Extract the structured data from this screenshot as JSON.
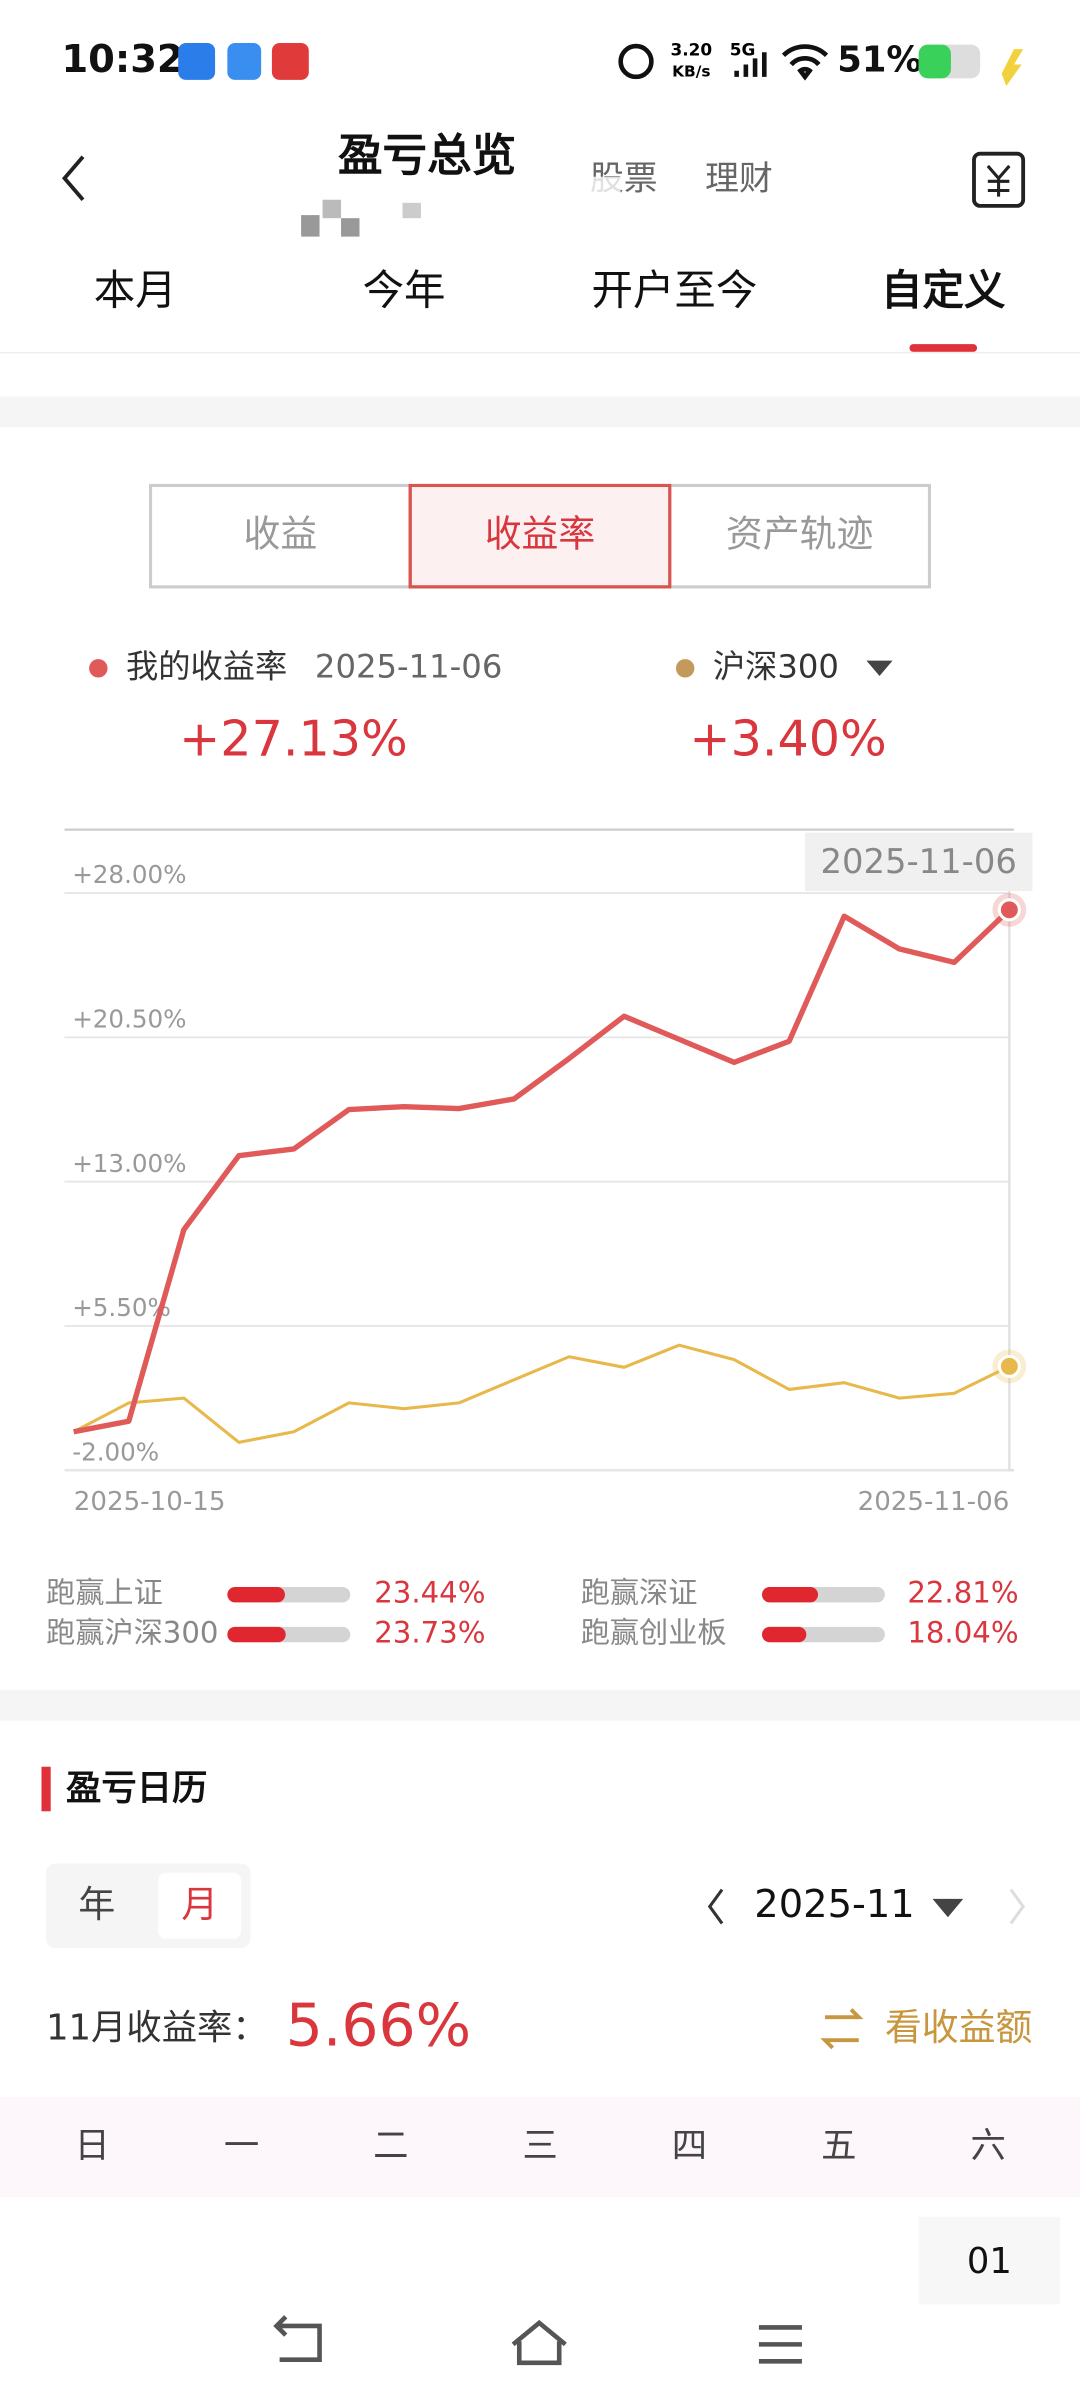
{
  "status_bar": {
    "time": "10:32",
    "speed": "3.20",
    "speed_unit": "KB/s",
    "network": "5G",
    "battery": "51%"
  },
  "header": {
    "title": "盈亏总览",
    "tabs": [
      "股票",
      "理财"
    ]
  },
  "period_tabs": {
    "items": [
      "本月",
      "今年",
      "开户至今",
      "自定义"
    ],
    "selected": 3
  },
  "segments": {
    "items": [
      "收益",
      "收益率",
      "资产轨迹"
    ],
    "selected": 1
  },
  "legend": {
    "my_date": "2025-11-06",
    "my_value": "+27.13%",
    "benchmark_value": "+3.40%"
  },
  "chart": {
    "type": "line",
    "tooltip": "2025-11-06",
    "categories": [
      "2025-10-15",
      null,
      null,
      null,
      null,
      null,
      null,
      null,
      null,
      null,
      null,
      null,
      null,
      null,
      null,
      null,
      null,
      "2025-11-06"
    ],
    "series": [
      {
        "name": "我的收益率",
        "color": "#e05a5a",
        "values": [
          0.0,
          0.55,
          10.5,
          14.35,
          14.7,
          16.75,
          16.9,
          16.8,
          17.3,
          19.4,
          21.6,
          20.4,
          19.2,
          20.3,
          26.8,
          25.1,
          24.4,
          27.13
        ]
      },
      {
        "name": "沪深300",
        "color": "#e8b84a",
        "values": [
          0.0,
          1.5,
          1.75,
          -0.55,
          0.0,
          1.5,
          1.2,
          1.5,
          2.7,
          3.9,
          3.35,
          4.5,
          3.75,
          2.2,
          2.55,
          1.75,
          2.0,
          3.4
        ]
      }
    ],
    "ylim": [
      -2,
      31.3
    ],
    "yticks": [
      {
        "value": -2,
        "label": "-2.00%"
      },
      {
        "value": 5.5,
        "label": "+5.50%"
      },
      {
        "value": 13,
        "label": "+13.00%"
      },
      {
        "value": 20.5,
        "label": "+20.50%"
      },
      {
        "value": 28,
        "label": "+28.00%"
      }
    ],
    "grid": true
  },
  "beat": {
    "xlim": [
      0,
      50
    ],
    "items": [
      {
        "label": "跑赢上证",
        "value": 23.44,
        "value_label": "23.44%"
      },
      {
        "label": "跑赢深证",
        "value": 22.81,
        "value_label": "22.81%"
      },
      {
        "label": "跑赢沪深300",
        "value": 23.73,
        "value_label": "23.73%"
      },
      {
        "label": "跑赢创业板",
        "value": 18.04,
        "value_label": "18.04%"
      }
    ]
  },
  "calendar": {
    "title": "盈亏日历",
    "modes": [
      "年",
      "月"
    ],
    "selected": 1,
    "month": "2025-11",
    "return_label": "11月收益率：",
    "return_value": "5.66%",
    "toggle": "看收益额",
    "weekdays": [
      "日",
      "一",
      "二",
      "三",
      "四",
      "五",
      "六"
    ],
    "first_day": "01"
  }
}
